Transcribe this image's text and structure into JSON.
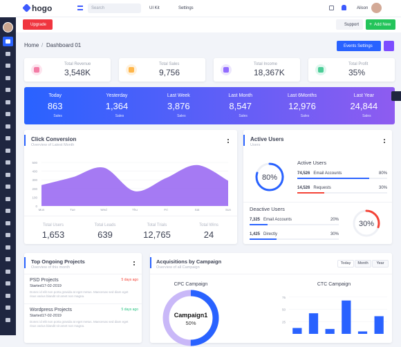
{
  "topbar": {
    "brand": "hogo",
    "search_placeholder": "Search",
    "menu_items": [
      "UI Kit",
      "Settings"
    ],
    "user": "Alison"
  },
  "actions": {
    "upgrade": "Upgrade",
    "support": "Support",
    "add_new": "Add New"
  },
  "breadcrumb": [
    "Home",
    "Dashboard 01"
  ],
  "events_button": "Events Settings",
  "stats": [
    {
      "label": "Total Revenue",
      "value": "3,548K"
    },
    {
      "label": "Total Sales",
      "value": "9,756"
    },
    {
      "label": "Total Income",
      "value": "18,367K"
    },
    {
      "label": "Total Profit",
      "value": "35%"
    }
  ],
  "summary": {
    "unit": "Sales",
    "periods": [
      {
        "label": "Today",
        "value": "863"
      },
      {
        "label": "Yesterday",
        "value": "1,364"
      },
      {
        "label": "Last Week",
        "value": "3,876"
      },
      {
        "label": "Last Month",
        "value": "8,547"
      },
      {
        "label": "Last 6Months",
        "value": "12,976"
      },
      {
        "label": "Last Year",
        "value": "24,844"
      }
    ]
  },
  "click_conversion": {
    "title": "Click Conversion",
    "subtitle": "Overview of Latest Month",
    "chart": {
      "type": "area",
      "categories": [
        "Mon",
        "Tue",
        "Wed",
        "Thu",
        "Fri",
        "Sat",
        "Sun"
      ],
      "values": [
        240,
        330,
        440,
        170,
        320,
        470,
        290
      ],
      "ylim": [
        0,
        500
      ],
      "yticks": [
        0,
        100,
        200,
        300,
        400,
        500
      ],
      "color": "#9b6cf2"
    },
    "totals": [
      {
        "label": "Total Users",
        "value": "1,653"
      },
      {
        "label": "Total Leads",
        "value": "639"
      },
      {
        "label": "Total Trials",
        "value": "12,765"
      },
      {
        "label": "Total Wins",
        "value": "24"
      }
    ]
  },
  "active_users": {
    "title": "Active Users",
    "subtitle": "Users",
    "gauge": {
      "value": 80,
      "label": "80%"
    },
    "active": {
      "heading": "Active Users",
      "rows": [
        {
          "count": "74,526",
          "name": "Email Accounts",
          "value": 80,
          "label": "80%",
          "color": "#2962ff"
        },
        {
          "count": "14,526",
          "name": "Requests",
          "value": 30,
          "label": "30%",
          "color": "#f44336"
        }
      ]
    },
    "deactive": {
      "heading": "Deactive Users",
      "gauge": {
        "value": 30,
        "label": "30%"
      },
      "rows": [
        {
          "count": "7,325",
          "name": "Email Accounts",
          "value": 20,
          "label": "20%",
          "color": "#2962ff"
        },
        {
          "count": "1,425",
          "name": "Directly",
          "value": 30,
          "label": "30%",
          "color": "#2962ff"
        }
      ]
    }
  },
  "projects": {
    "title": "Top Ongoing Projects",
    "subtitle": "Overview of this month",
    "items": [
      {
        "name": "PSD Projects",
        "time": "5 days ago",
        "started": "Started17-02-2019",
        "description": "Donec id elit non porta gravida at eget metus. Maecenas sed diam eget risus varius blandit sit amet non magna."
      },
      {
        "name": "Wordpress Projects",
        "time": "5 days ago",
        "started": "Started17-02-2019",
        "description": "Donec id elit non porta gravida at eget metus. Maecenas sed diam eget risus varius blandit sit amet non magna."
      }
    ]
  },
  "acquisitions": {
    "title": "Acquisitions by Campaign",
    "subtitle": "Overview of all Campaign",
    "ranges": [
      "Today",
      "Month",
      "Year"
    ],
    "cpc": {
      "title": "CPC Campaign",
      "name": "Campaign1",
      "value": 50,
      "label": "50%"
    },
    "ctc": {
      "title": "CTC Campaign",
      "chart": {
        "type": "bar",
        "values": [
          12,
          42,
          10,
          68,
          5,
          36
        ],
        "ylim": [
          0,
          100
        ],
        "yticks": [
          25,
          50,
          75
        ],
        "color": "#2962ff"
      }
    }
  }
}
